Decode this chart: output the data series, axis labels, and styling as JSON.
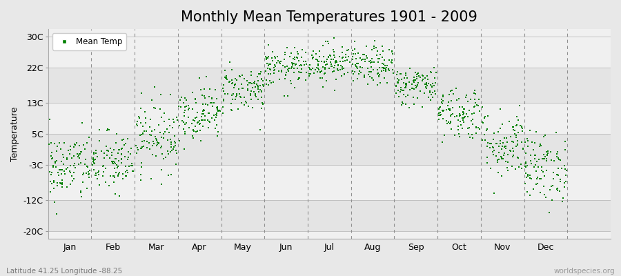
{
  "title": "Monthly Mean Temperatures 1901 - 2009",
  "ylabel": "Temperature",
  "xlabel_labels": [
    "Jan",
    "Feb",
    "Mar",
    "Apr",
    "May",
    "Jun",
    "Jul",
    "Aug",
    "Sep",
    "Oct",
    "Nov",
    "Dec"
  ],
  "ytick_labels": [
    "30C",
    "22C",
    "13C",
    "5C",
    "-3C",
    "-12C",
    "-20C"
  ],
  "ytick_values": [
    30,
    22,
    13,
    5,
    -3,
    -12,
    -20
  ],
  "ylim": [
    -22,
    32
  ],
  "xlim": [
    -0.5,
    12.5
  ],
  "dot_color": "#008000",
  "dot_size": 3,
  "bg_color": "#E8E8E8",
  "band_colors": [
    "#F0F0F0",
    "#E4E4E4"
  ],
  "grid_dash_color": "#909090",
  "title_fontsize": 15,
  "axis_fontsize": 9,
  "ylabel_fontsize": 9,
  "footnote_left": "Latitude 41.25 Longitude -88.25",
  "footnote_right": "worldspecies.org",
  "legend_label": "Mean Temp",
  "monthly_means": [
    -3.5,
    -2.5,
    4.5,
    10.5,
    16.5,
    22.0,
    23.5,
    22.5,
    17.5,
    10.5,
    2.5,
    -3.5
  ],
  "monthly_stds": [
    4.5,
    4.0,
    4.5,
    3.5,
    3.0,
    2.5,
    2.5,
    2.5,
    2.5,
    3.5,
    4.5,
    4.5
  ],
  "n_years": 109,
  "seed": 42
}
